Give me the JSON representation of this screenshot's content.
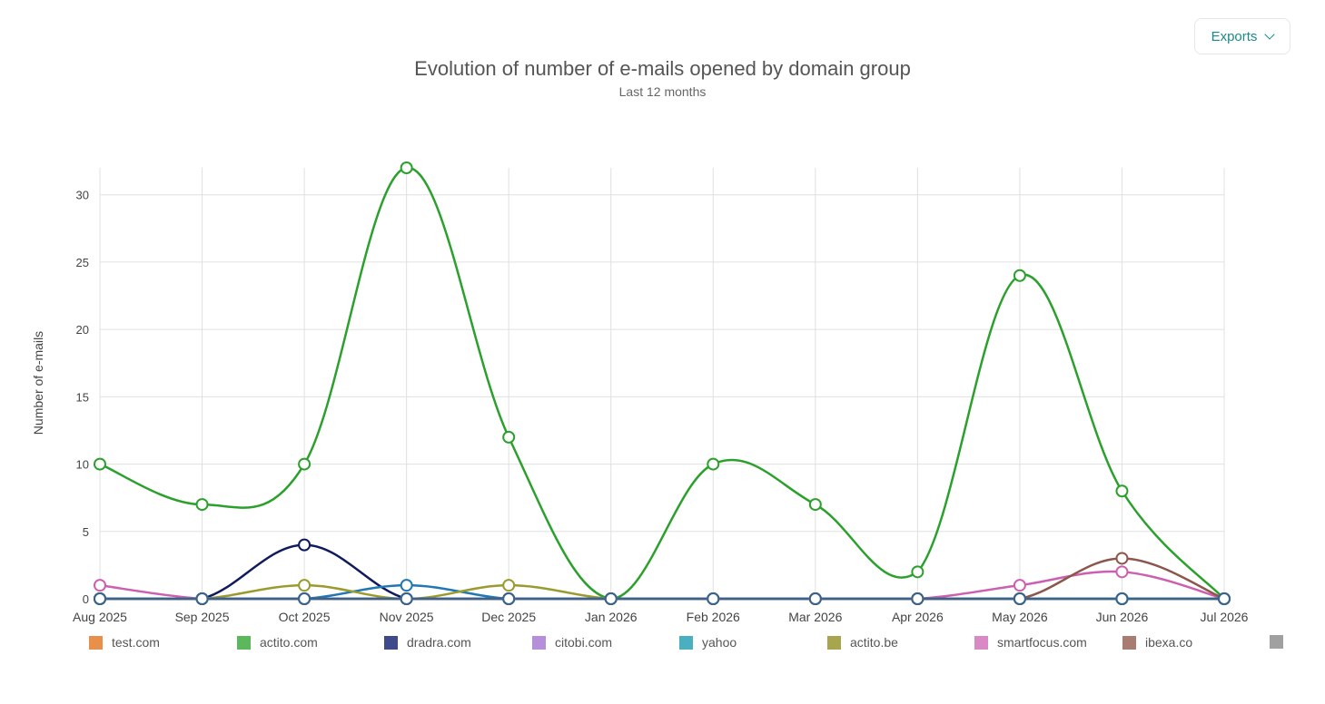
{
  "header": {
    "exports_label": "Exports"
  },
  "chart_data": {
    "type": "line",
    "title": "Evolution of number of e-mails opened by domain group",
    "subtitle": "Last 12 months",
    "ylabel": "Number of e-mails",
    "xlabel": "",
    "ylim": [
      0,
      32
    ],
    "yticks": [
      0,
      5,
      10,
      15,
      20,
      25,
      30
    ],
    "grid": true,
    "legend_position": "bottom",
    "categories": [
      "Aug 2025",
      "Sep 2025",
      "Oct 2025",
      "Nov 2025",
      "Dec 2025",
      "Jan 2026",
      "Feb 2026",
      "Mar 2026",
      "Apr 2026",
      "May 2026",
      "Jun 2026",
      "Jul 2026"
    ],
    "series": [
      {
        "name": "test.com",
        "legend_color": "#e8904a",
        "line_color": "#d9702a",
        "values": [
          0,
          0,
          0,
          0,
          0,
          0,
          0,
          0,
          0,
          0,
          0,
          0
        ]
      },
      {
        "name": "actito.com",
        "legend_color": "#5cb85c",
        "line_color": "#2ca02c",
        "values": [
          10,
          7,
          10,
          32,
          12,
          0,
          10,
          7,
          2,
          24,
          8,
          0
        ]
      },
      {
        "name": "dradra.com",
        "legend_color": "#3e4a8a",
        "line_color": "#101a5c",
        "values": [
          0,
          0,
          4,
          0,
          0,
          0,
          0,
          0,
          0,
          0,
          0,
          0
        ]
      },
      {
        "name": "citobi.com",
        "legend_color": "#b58fd9",
        "line_color": "#9467bd",
        "values": [
          0,
          0,
          0,
          0,
          0,
          0,
          0,
          0,
          0,
          0,
          0,
          0
        ]
      },
      {
        "name": "yahoo",
        "legend_color": "#4ab0bf",
        "line_color": "#1f77b4",
        "values": [
          0,
          0,
          0,
          1,
          0,
          0,
          0,
          0,
          0,
          0,
          0,
          0
        ]
      },
      {
        "name": "actito.be",
        "legend_color": "#a7a54e",
        "line_color": "#9a9a2e",
        "values": [
          0,
          0,
          1,
          0,
          1,
          0,
          0,
          0,
          0,
          0,
          0,
          0
        ]
      },
      {
        "name": "smartfocus.com",
        "legend_color": "#d98ac4",
        "line_color": "#cc5fb0",
        "values": [
          1,
          0,
          0,
          0,
          0,
          0,
          0,
          0,
          0,
          1,
          2,
          0
        ]
      },
      {
        "name": "ibexa.co",
        "legend_color": "#a87c72",
        "line_color": "#8c564b",
        "values": [
          0,
          0,
          0,
          0,
          0,
          0,
          0,
          0,
          0,
          0,
          3,
          0
        ]
      },
      {
        "name": "",
        "legend_color": "#a0a0a0",
        "line_color": "#35648f",
        "values": [
          0,
          0,
          0,
          0,
          0,
          0,
          0,
          0,
          0,
          0,
          0,
          0
        ]
      }
    ]
  }
}
